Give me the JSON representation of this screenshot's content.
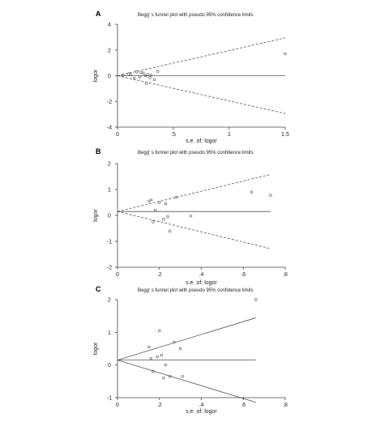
{
  "chart_data": [
    {
      "type": "scatter",
      "panel_label": "A",
      "title": "Begg' s funnel plot with pseudo 95% confidence limits",
      "xlabel": "s.e. of: logor",
      "ylabel": "logor",
      "xlim": [
        0,
        1.5
      ],
      "ylim": [
        -4,
        4
      ],
      "xticks": [
        {
          "value": 0,
          "label": "0"
        },
        {
          "value": 0.5,
          "label": ".5"
        },
        {
          "value": 1,
          "label": "1"
        },
        {
          "value": 1.5,
          "label": "1.5"
        }
      ],
      "yticks": [
        {
          "value": -4,
          "label": "-4"
        },
        {
          "value": -2,
          "label": "-2"
        },
        {
          "value": 0,
          "label": "0"
        },
        {
          "value": 2,
          "label": "2"
        },
        {
          "value": 4,
          "label": "4"
        }
      ],
      "pooled": 0.0,
      "limits_se_max": 1.5,
      "points": [
        {
          "x": 0.05,
          "y": 0.05
        },
        {
          "x": 0.1,
          "y": 0.15
        },
        {
          "x": 0.12,
          "y": 0.1
        },
        {
          "x": 0.15,
          "y": -0.2
        },
        {
          "x": 0.17,
          "y": 0.3
        },
        {
          "x": 0.2,
          "y": -0.1
        },
        {
          "x": 0.21,
          "y": 0.25
        },
        {
          "x": 0.23,
          "y": 0.2
        },
        {
          "x": 0.25,
          "y": 0.0
        },
        {
          "x": 0.26,
          "y": -0.6
        },
        {
          "x": 0.27,
          "y": 0.1
        },
        {
          "x": 0.29,
          "y": -0.15
        },
        {
          "x": 0.3,
          "y": 0.05
        },
        {
          "x": 0.33,
          "y": -0.3
        },
        {
          "x": 0.36,
          "y": 0.35
        },
        {
          "x": 1.5,
          "y": 1.7
        }
      ]
    },
    {
      "type": "scatter",
      "panel_label": "B",
      "title": "Begg' s funnel plot with pseudo 95% confidence limits",
      "xlabel": "s.e. of: logor",
      "ylabel": "logor",
      "xlim": [
        0,
        0.8
      ],
      "ylim": [
        -2,
        2
      ],
      "xticks": [
        {
          "value": 0,
          "label": "0"
        },
        {
          "value": 0.2,
          "label": ".2"
        },
        {
          "value": 0.4,
          "label": ".4"
        },
        {
          "value": 0.6,
          "label": ".6"
        },
        {
          "value": 0.8,
          "label": ".8"
        }
      ],
      "yticks": [
        {
          "value": -2,
          "label": "-2"
        },
        {
          "value": -1,
          "label": "-1"
        },
        {
          "value": 0,
          "label": "0"
        },
        {
          "value": 1,
          "label": "1"
        },
        {
          "value": 2,
          "label": "2"
        }
      ],
      "pooled": 0.15,
      "limits_se_max": 0.73,
      "points": [
        {
          "x": 0.15,
          "y": 0.55
        },
        {
          "x": 0.16,
          "y": 0.6
        },
        {
          "x": 0.17,
          "y": -0.25
        },
        {
          "x": 0.18,
          "y": 0.2
        },
        {
          "x": 0.2,
          "y": 0.5
        },
        {
          "x": 0.22,
          "y": -0.15
        },
        {
          "x": 0.23,
          "y": 0.45
        },
        {
          "x": 0.24,
          "y": -0.05
        },
        {
          "x": 0.25,
          "y": -0.6
        },
        {
          "x": 0.28,
          "y": 0.7
        },
        {
          "x": 0.35,
          "y": -0.02
        },
        {
          "x": 0.64,
          "y": 0.9
        },
        {
          "x": 0.73,
          "y": 0.78
        }
      ]
    },
    {
      "type": "scatter",
      "panel_label": "C",
      "title": "Begg' s funnel plot with pseudo 95% confidence limits",
      "xlabel": "s.e. of: logor",
      "ylabel": "logor",
      "xlim": [
        0,
        0.8
      ],
      "ylim": [
        -1,
        2
      ],
      "xticks": [
        {
          "value": 0,
          "label": "0"
        },
        {
          "value": 0.2,
          "label": ".2"
        },
        {
          "value": 0.4,
          "label": ".4"
        },
        {
          "value": 0.6,
          "label": ".6"
        },
        {
          "value": 0.8,
          "label": ".8"
        }
      ],
      "yticks": [
        {
          "value": -1,
          "label": "-1"
        },
        {
          "value": 0,
          "label": "0"
        },
        {
          "value": 1,
          "label": "1"
        },
        {
          "value": 2,
          "label": "2"
        }
      ],
      "pooled": 0.15,
      "limits_se_max": 0.66,
      "points": [
        {
          "x": 0.15,
          "y": 0.55
        },
        {
          "x": 0.16,
          "y": 0.2
        },
        {
          "x": 0.17,
          "y": -0.2
        },
        {
          "x": 0.19,
          "y": 0.25
        },
        {
          "x": 0.2,
          "y": 1.05
        },
        {
          "x": 0.21,
          "y": 0.3
        },
        {
          "x": 0.22,
          "y": -0.4
        },
        {
          "x": 0.23,
          "y": 0.0
        },
        {
          "x": 0.25,
          "y": -0.35
        },
        {
          "x": 0.27,
          "y": 0.7
        },
        {
          "x": 0.3,
          "y": 0.5
        },
        {
          "x": 0.31,
          "y": -0.35
        },
        {
          "x": 0.66,
          "y": 2.0
        }
      ]
    }
  ]
}
